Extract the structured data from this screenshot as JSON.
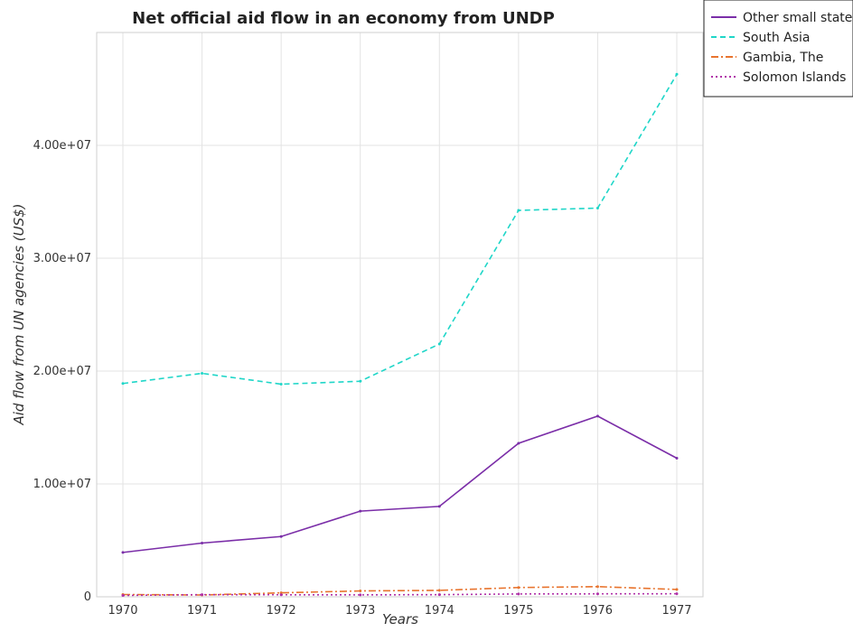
{
  "chart_data": {
    "type": "line",
    "title": "Net official aid flow in an economy from UNDP",
    "xlabel": "Years",
    "ylabel": "Aid flow from UN agencies (US$)",
    "categories": [
      "1970",
      "1971",
      "1972",
      "1973",
      "1974",
      "1975",
      "1976",
      "1977"
    ],
    "ylim": [
      0,
      50000000
    ],
    "yticks": [
      0,
      10000000,
      20000000,
      30000000,
      40000000
    ],
    "ytick_labels": [
      "0",
      "1.00e+07",
      "2.00e+07",
      "3.00e+07",
      "4.00e+07"
    ],
    "grid": true,
    "legend_position": "top-right",
    "series": [
      {
        "name": "Other small states",
        "color": "#7b2ea8",
        "dash": "solid",
        "values": [
          3930000,
          4760000,
          5340000,
          7590000,
          8010000,
          13600000,
          16010000,
          12280000
        ]
      },
      {
        "name": "South Asia",
        "color": "#1fd6c8",
        "dash": "dashed",
        "values": [
          18900000,
          19800000,
          18840000,
          19100000,
          22400000,
          34240000,
          34440000,
          46300000
        ]
      },
      {
        "name": "Gambia, The",
        "color": "#e8742e",
        "dash": "dashdot",
        "values": [
          200000,
          160000,
          350000,
          520000,
          570000,
          820000,
          900000,
          650000
        ]
      },
      {
        "name": "Solomon Islands",
        "color": "#b030a8",
        "dash": "dotted",
        "values": [
          120000,
          190000,
          180000,
          170000,
          190000,
          250000,
          260000,
          270000
        ]
      }
    ]
  }
}
